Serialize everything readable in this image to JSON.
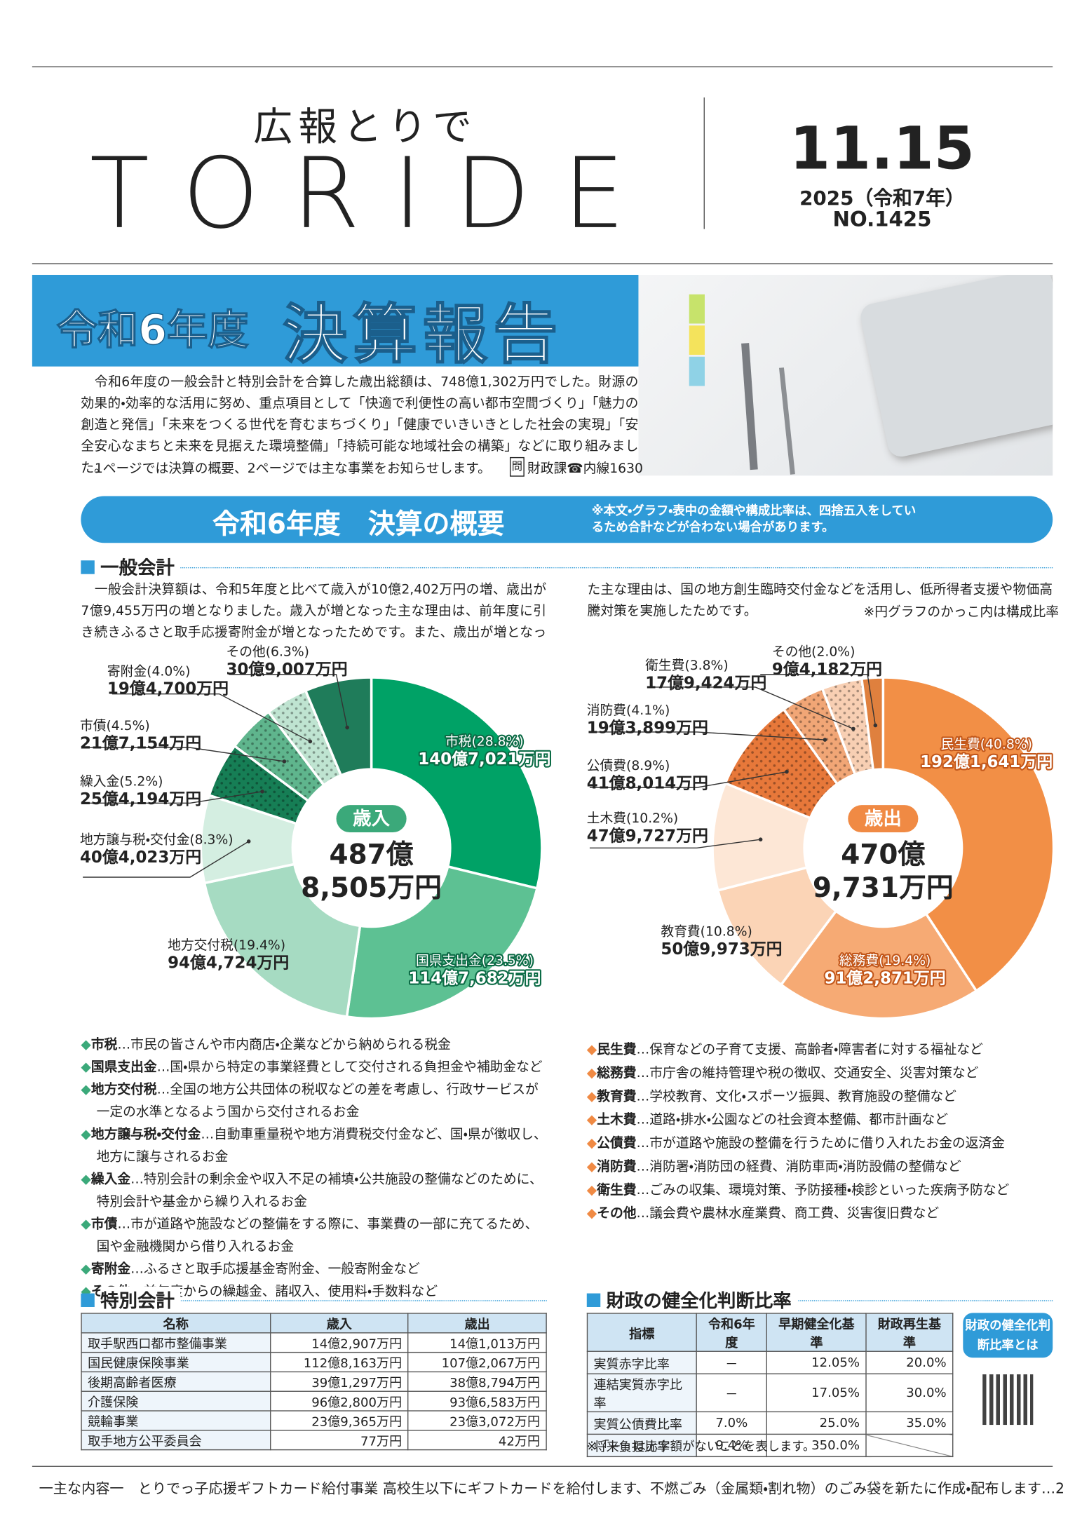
{
  "header": {
    "subtitle": "広報とりで",
    "title": "TORIDE",
    "date": "11.15",
    "year": "2025（令和7年）",
    "issue": "NO.1425"
  },
  "hero": {
    "prefix": "令和6年度",
    "title": "決算報告"
  },
  "intro": {
    "text": "令和6年度の一般会計と特別会計を合算した歳出総額は、748億1,302万円でした。財源の効果的・効率的な活用に努め、重点項目として「快適で利便性の高い都市空間づくり」「魅力の創造と発信」「未来をつくる世代を育むまちづくり」「健康でいきいきとした社会の実現」「安全安心なまちと未来を見据えた環境整備」「持続可能な地域社会の構築」などに取り組みました。",
    "note": "1ページでは決算の概要、2ページでは主な事業をお知らせします。",
    "contact_icon": "問",
    "contact": "財政課☎内線1630"
  },
  "overview": {
    "title": "令和6年度　決算の概要",
    "note": "※本文・グラフ・表中の金額や構成比率は、四捨五入をしているため合計などが合わない場合があります。"
  },
  "general": {
    "heading": "一般会計",
    "text": "一般会計決算額は、令和5年度と比べて歳入が10億2,402万円の増、歳出が7億9,455万円の増となりました。歳入が増となった主な理由は、前年度に引き続きふるさと取手応援寄附金が増となったためです。また、歳出が増となった主な理由は、国の地方創生臨時交付金などを活用し、低所得者支援や物価高騰対策を実施したためです。",
    "pie_note": "※円グラフのかっこ内は構成比率"
  },
  "chart_data": [
    {
      "type": "pie",
      "center_label": "歳入",
      "total_oku": "487億",
      "total_man": "8,505万円",
      "categories": [
        "市税",
        "国県支出金",
        "地方交付税",
        "地方譲与税・交付金",
        "繰入金",
        "市債",
        "寄附金",
        "その他"
      ],
      "values": [
        28.8,
        23.5,
        19.4,
        8.3,
        5.2,
        4.5,
        4.0,
        6.3
      ],
      "value_labels": [
        "(28.8%)",
        "(23.5%)",
        "(19.4%)",
        "(8.3%)",
        "(5.2%)",
        "(4.5%)",
        "(4.0%)",
        "(6.3%)"
      ],
      "amounts": [
        "140億7,021万円",
        "114億7,682万円",
        "94億4,724万円",
        "40億4,023万円",
        "25億4,194万円",
        "21億7,154万円",
        "19億4,700万円",
        "30億9,007万円"
      ],
      "colors": [
        "#00a266",
        "#5dc193",
        "#a6dbc2",
        "#d4eee1",
        "#167e55",
        "#5fb58d",
        "#bfe4d1",
        "#1f7c5a"
      ],
      "dotted": [
        false,
        false,
        false,
        false,
        true,
        true,
        true,
        false
      ],
      "accent": "#3ba97a"
    },
    {
      "type": "pie",
      "center_label": "歳出",
      "total_oku": "470億",
      "total_man": "9,731万円",
      "categories": [
        "民生費",
        "総務費",
        "教育費",
        "土木費",
        "公債費",
        "消防費",
        "衛生費",
        "その他"
      ],
      "values": [
        40.8,
        19.4,
        10.8,
        10.2,
        8.9,
        4.1,
        3.8,
        2.0
      ],
      "value_labels": [
        "(40.8%)",
        "(19.4%)",
        "(10.8%)",
        "(10.2%)",
        "(8.9%)",
        "(4.1%)",
        "(3.8%)",
        "(2.0%)"
      ],
      "amounts": [
        "192億1,641万円",
        "91億2,871万円",
        "50億9,973万円",
        "47億9,727万円",
        "41億8,014万円",
        "19億3,899万円",
        "17億9,424万円",
        "9億4,182万円"
      ],
      "colors": [
        "#f28f46",
        "#f6aa74",
        "#fbd4b6",
        "#fde7d6",
        "#e7783a",
        "#f1a676",
        "#f8cfb3",
        "#df803e"
      ],
      "dotted": [
        false,
        false,
        false,
        false,
        true,
        true,
        true,
        false
      ],
      "accent": "#f08a44"
    }
  ],
  "revenue_glossary": [
    {
      "term": "市税",
      "desc": "…市民の皆さんや市内商店・企業などから納められる税金"
    },
    {
      "term": "国県支出金",
      "desc": "…国・県から特定の事業経費として交付される負担金や補助金など"
    },
    {
      "term": "地方交付税",
      "desc": "…全国の地方公共団体の税収などの差を考慮し、行政サービスが一定の水準となるよう国から交付されるお金"
    },
    {
      "term": "地方譲与税・交付金",
      "desc": "…自動車重量税や地方消費税交付金など、国・県が徴収し、地方に譲与されるお金"
    },
    {
      "term": "繰入金",
      "desc": "…特別会計の剰余金や収入不足の補填・公共施設の整備などのために、特別会計や基金から繰り入れるお金"
    },
    {
      "term": "市債",
      "desc": "…市が道路や施設などの整備をする際に、事業費の一部に充てるため、国や金融機関から借り入れるお金"
    },
    {
      "term": "寄附金",
      "desc": "…ふるさと取手応援基金寄附金、一般寄附金など"
    },
    {
      "term": "その他",
      "desc": "…前年度からの繰越金、諸収入、使用料・手数料など"
    }
  ],
  "expense_glossary": [
    {
      "term": "民生費",
      "desc": "…保育などの子育て支援、高齢者・障害者に対する福祉など"
    },
    {
      "term": "総務費",
      "desc": "…市庁舎の維持管理や税の徴収、交通安全、災害対策など"
    },
    {
      "term": "教育費",
      "desc": "…学校教育、文化・スポーツ振興、教育施設の整備など"
    },
    {
      "term": "土木費",
      "desc": "…道路・排水・公園などの社会資本整備、都市計画など"
    },
    {
      "term": "公債費",
      "desc": "…市が道路や施設の整備を行うために借り入れたお金の返済金"
    },
    {
      "term": "消防費",
      "desc": "…消防署・消防団の経費、消防車両・消防設備の整備など"
    },
    {
      "term": "衛生費",
      "desc": "…ごみの収集、環境対策、予防接種・検診といった疾病予防など"
    },
    {
      "term": "その他",
      "desc": "…議会費や農林水産業費、商工費、災害復旧費など"
    }
  ],
  "special": {
    "heading": "特別会計",
    "columns": [
      "名称",
      "歳入",
      "歳出"
    ],
    "rows": [
      [
        "取手駅西口都市整備事業",
        "14億2,907万円",
        "14億1,013万円"
      ],
      [
        "国民健康保険事業",
        "112億8,163万円",
        "107億2,067万円"
      ],
      [
        "後期高齢者医療",
        "39億1,297万円",
        "38億8,794万円"
      ],
      [
        "介護保険",
        "96億2,800万円",
        "93億6,583万円"
      ],
      [
        "競輪事業",
        "23億9,365万円",
        "23億3,072万円"
      ],
      [
        "取手地方公平委員会",
        "77万円",
        "42万円"
      ]
    ]
  },
  "fiscal": {
    "heading": "財政の健全化判断比率",
    "columns": [
      "指標",
      "令和6年度",
      "早期健全化基準",
      "財政再生基準"
    ],
    "rows": [
      [
        "実質赤字比率",
        "－",
        "12.05%",
        "20.0%"
      ],
      [
        "連結実質赤字比率",
        "－",
        "17.05%",
        "30.0%"
      ],
      [
        "実質公債費比率",
        "7.0%",
        "25.0%",
        "35.0%"
      ],
      [
        "将来負担比率",
        "9.4%",
        "350.0%"
      ]
    ],
    "note": "※「－」は赤字額がないことを表します。",
    "badge": "財政の健全化判断比率とは"
  },
  "footer": "一主な内容一　とりでっ子応援ギフトカード給付事業 高校生以下にギフトカードを給付します、不燃ごみ（金属類・割れ物）のごみ袋を新たに作成・配布します…2"
}
